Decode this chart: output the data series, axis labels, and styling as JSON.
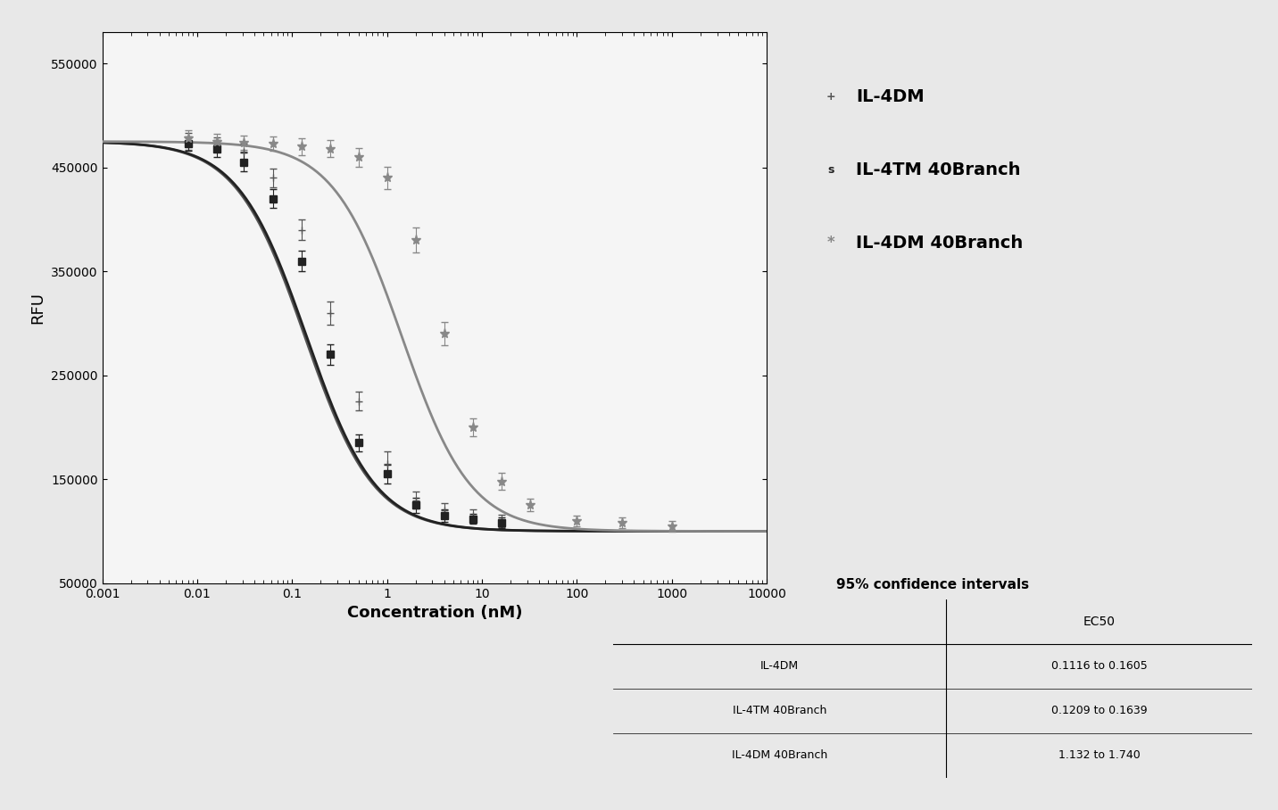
{
  "series": [
    {
      "name": "IL-4DM",
      "color": "#555555",
      "marker": "+",
      "ec50": 0.136,
      "top": 475000,
      "bottom": 100000,
      "hill": 1.2,
      "x_data": [
        0.008,
        0.016,
        0.031,
        0.063,
        0.125,
        0.25,
        0.5,
        1.0,
        2.0,
        4.0,
        8.0,
        16.0
      ],
      "y_data": [
        475000,
        472000,
        465000,
        440000,
        390000,
        310000,
        225000,
        165000,
        130000,
        120000,
        115000,
        110000
      ],
      "y_err": [
        8000,
        7000,
        8000,
        9000,
        10000,
        11000,
        9000,
        12000,
        8000,
        7000,
        6000,
        6000
      ]
    },
    {
      "name": "IL-4TM 40Branch",
      "color": "#222222",
      "marker": "s",
      "ec50": 0.142,
      "top": 475000,
      "bottom": 100000,
      "hill": 1.2,
      "x_data": [
        0.008,
        0.016,
        0.031,
        0.063,
        0.125,
        0.25,
        0.5,
        1.0,
        2.0,
        4.0,
        8.0,
        16.0
      ],
      "y_data": [
        473000,
        468000,
        455000,
        420000,
        360000,
        270000,
        185000,
        155000,
        125000,
        115000,
        112000,
        108000
      ],
      "y_err": [
        7000,
        8000,
        9000,
        9000,
        10000,
        10000,
        8000,
        9000,
        7000,
        6000,
        5000,
        5000
      ]
    },
    {
      "name": "IL-4DM 40Branch",
      "color": "#888888",
      "marker": "*",
      "ec50": 1.43,
      "top": 475000,
      "bottom": 100000,
      "hill": 1.2,
      "x_data": [
        0.008,
        0.016,
        0.031,
        0.063,
        0.125,
        0.25,
        0.5,
        1.0,
        2.0,
        4.0,
        8.0,
        16.0,
        32.0,
        100.0,
        300.0,
        1000.0
      ],
      "y_data": [
        478000,
        475000,
        474000,
        473000,
        470000,
        468000,
        460000,
        440000,
        380000,
        290000,
        200000,
        148000,
        125000,
        110000,
        108000,
        105000
      ],
      "y_err": [
        8000,
        7000,
        7000,
        7000,
        8000,
        8000,
        9000,
        11000,
        12000,
        11000,
        9000,
        8000,
        6000,
        5000,
        5000,
        5000
      ]
    }
  ],
  "xlim": [
    0.001,
    10000
  ],
  "ylim": [
    50000,
    580000
  ],
  "ylabel": "RFU",
  "xlabel": "Concentration (nM)",
  "yticks": [
    50000,
    150000,
    250000,
    350000,
    450000,
    550000
  ],
  "xtick_labels": [
    "0.001",
    "0.01",
    "0.1",
    "1",
    "10",
    "100",
    "1000",
    "10000"
  ],
  "xtick_vals": [
    0.001,
    0.01,
    0.1,
    1,
    10,
    100,
    1000,
    10000
  ],
  "bg_color": "#e8e8e8",
  "plot_bg_color": "#f5f5f5",
  "legend_labels": [
    "IL-4DM",
    "IL-4TM 40Branch",
    "IL-4DM 40Branch"
  ],
  "legend_colors": [
    "#555555",
    "#222222",
    "#888888"
  ],
  "legend_markers": [
    "+",
    "s",
    "*"
  ],
  "table_title": "95% confidence intervals",
  "table_col_header": "EC50",
  "table_rows": [
    [
      "IL-4DM",
      "0.1116 to 0.1605"
    ],
    [
      "IL-4TM 40Branch",
      "0.1209 to 0.1639"
    ],
    [
      "IL-4DM 40Branch",
      "1.132 to 1.740"
    ]
  ]
}
